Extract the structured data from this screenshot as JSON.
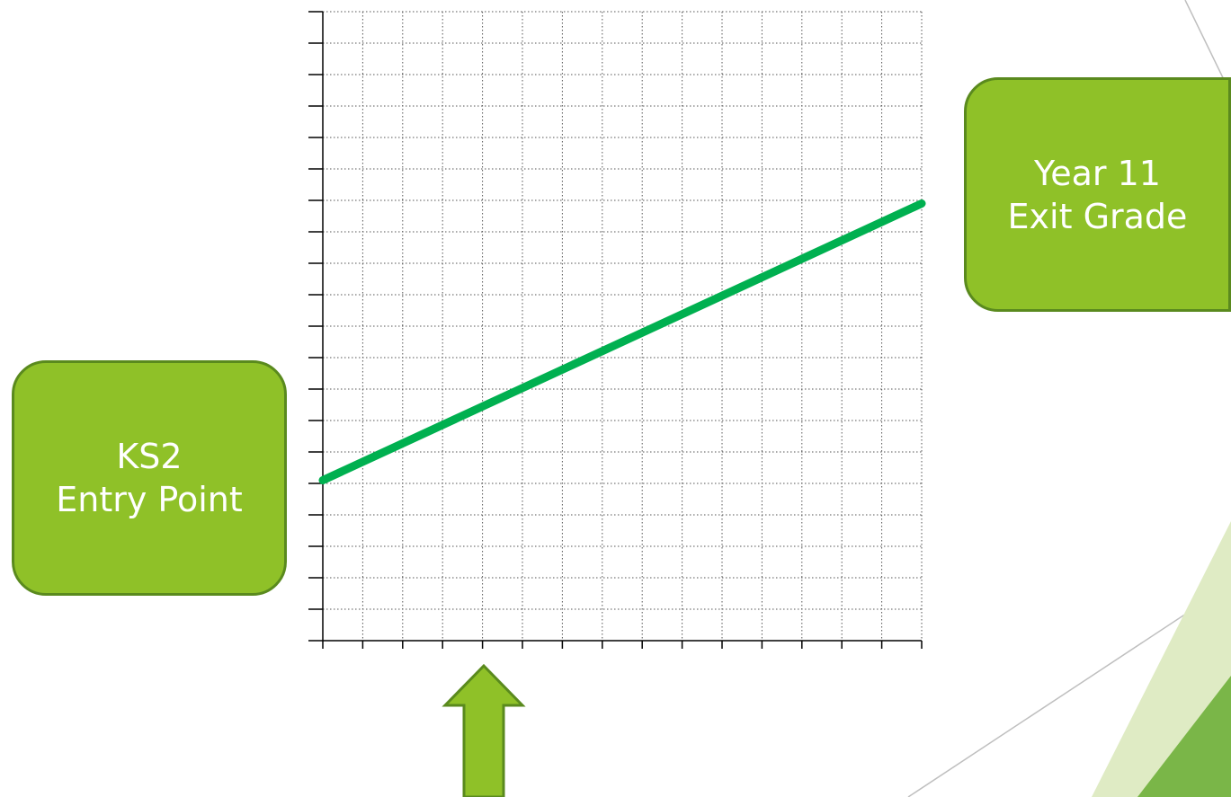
{
  "colors": {
    "box_fill": "#8fc128",
    "box_border": "#5a8a1e",
    "line": "#00b050",
    "arrow_fill": "#8fc128",
    "deco_light": "#dfebc4",
    "deco_dark": "#7ab648"
  },
  "labels": {
    "entry": {
      "line1": "KS2",
      "line2": "Entry Point"
    },
    "exit": {
      "line1": "Year 11",
      "line2": "Exit Grade"
    }
  },
  "arrow": {
    "icon": "up-arrow-icon",
    "direction": "up"
  },
  "chart_data": {
    "type": "line",
    "grid": true,
    "grid_style": "dotted",
    "xlim": [
      0,
      15
    ],
    "ylim": [
      0,
      20
    ],
    "x_ticks": 15,
    "y_ticks": 20,
    "series": [
      {
        "x": [
          0,
          15
        ],
        "y": [
          5.1,
          13.9
        ]
      }
    ],
    "annotations": [
      {
        "text_ref": "labels.entry",
        "anchor": "start"
      },
      {
        "text_ref": "labels.exit",
        "anchor": "end"
      },
      {
        "type": "arrow",
        "at_x": 4
      }
    ]
  }
}
